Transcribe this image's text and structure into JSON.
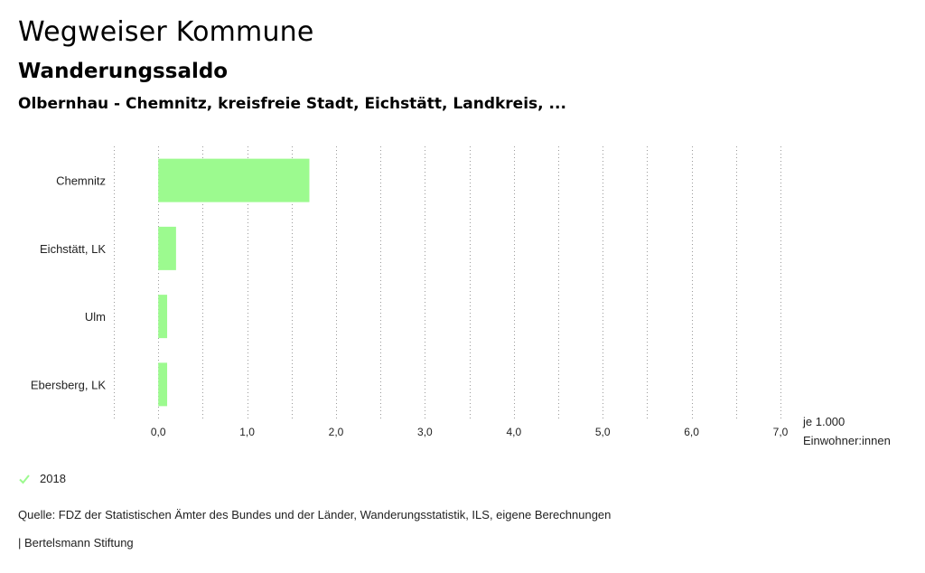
{
  "header": {
    "title": "Wegweiser Kommune",
    "subtitle": "Wanderungssaldo",
    "subsubtitle": "Olbernhau - Chemnitz, kreisfreie Stadt, Eichstätt, Landkreis, ..."
  },
  "chart_data": {
    "type": "bar",
    "orientation": "horizontal",
    "categories": [
      "Chemnitz",
      "Eichstätt, LK",
      "Ulm",
      "Ebersberg, LK"
    ],
    "series": [
      {
        "name": "2018",
        "values": [
          1.7,
          0.2,
          0.1,
          0.1
        ],
        "color": "#9cfa8f"
      }
    ],
    "xlim": [
      -0.5,
      7.0
    ],
    "x_ticks": [
      0,
      1,
      2,
      3,
      4,
      5,
      6,
      7
    ],
    "x_tick_labels": [
      "0,0",
      "1,0",
      "2,0",
      "3,0",
      "4,0",
      "5,0",
      "6,0",
      "7,0"
    ],
    "unit_label": [
      "je 1.000",
      "Einwohner:innen"
    ],
    "grid": "vertical-dotted",
    "legend_position": "bottom-left"
  },
  "legend": {
    "label": "2018",
    "check_color": "#9cfa8f"
  },
  "footer": {
    "source": "Quelle: FDZ der Statistischen Ämter des Bundes und der Länder, Wanderungsstatistik, ILS, eigene Berechnungen",
    "credit": "| Bertelsmann Stiftung"
  }
}
